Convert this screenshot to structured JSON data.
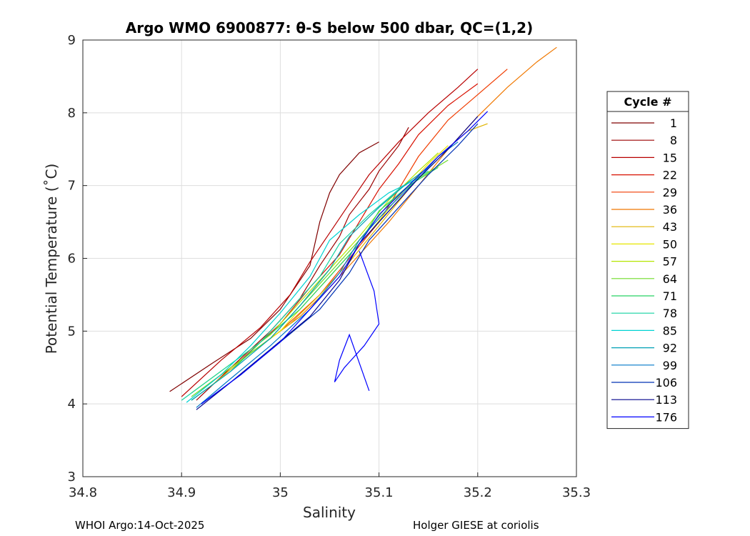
{
  "chart_data": {
    "type": "line",
    "title": "Argo WMO 6900877: θ-S below 500 dbar,  QC=(1,2)",
    "xlabel": "Salinity",
    "ylabel": "Potential Temperature (˚C)",
    "xlim": [
      34.8,
      35.3
    ],
    "ylim": [
      3,
      9
    ],
    "xticks": [
      "34.8",
      "34.9",
      "35",
      "35.1",
      "35.2",
      "35.3"
    ],
    "yticks": [
      "3",
      "4",
      "5",
      "6",
      "7",
      "8",
      "9"
    ],
    "grid": true,
    "legend_title": "Cycle #",
    "legend_placement": "right-outside",
    "series": [
      {
        "name": "1",
        "color": "#800000",
        "x": [
          34.888,
          34.93,
          34.97,
          35.0,
          35.03,
          35.04,
          35.05,
          35.06,
          35.08,
          35.1
        ],
        "y": [
          4.17,
          4.55,
          4.9,
          5.3,
          5.9,
          6.5,
          6.9,
          7.15,
          7.45,
          7.6
        ]
      },
      {
        "name": "8",
        "color": "#9b0000",
        "x": [
          34.915,
          34.95,
          34.99,
          35.02,
          35.04,
          35.06,
          35.07,
          35.09,
          35.1,
          35.12,
          35.13
        ],
        "y": [
          4.05,
          4.5,
          5.0,
          5.45,
          5.9,
          6.3,
          6.6,
          6.95,
          7.2,
          7.55,
          7.8
        ]
      },
      {
        "name": "15",
        "color": "#b80000",
        "x": [
          34.9,
          34.94,
          34.98,
          35.01,
          35.03,
          35.05,
          35.07,
          35.09,
          35.12,
          35.15,
          35.18,
          35.2
        ],
        "y": [
          4.1,
          4.6,
          5.05,
          5.5,
          5.95,
          6.35,
          6.75,
          7.15,
          7.6,
          8.0,
          8.35,
          8.6
        ]
      },
      {
        "name": "22",
        "color": "#d81000",
        "x": [
          34.92,
          34.96,
          35.0,
          35.03,
          35.06,
          35.08,
          35.1,
          35.12,
          35.14,
          35.17,
          35.2
        ],
        "y": [
          4.2,
          4.6,
          5.1,
          5.6,
          6.05,
          6.5,
          6.95,
          7.3,
          7.7,
          8.1,
          8.4
        ]
      },
      {
        "name": "29",
        "color": "#f03c00",
        "x": [
          34.93,
          34.97,
          35.0,
          35.04,
          35.07,
          35.1,
          35.12,
          35.14,
          35.17,
          35.2,
          35.23
        ],
        "y": [
          4.3,
          4.7,
          5.0,
          5.5,
          6.0,
          6.5,
          6.95,
          7.4,
          7.9,
          8.25,
          8.6
        ]
      },
      {
        "name": "36",
        "color": "#f07800",
        "x": [
          34.94,
          34.98,
          35.02,
          35.05,
          35.08,
          35.11,
          35.14,
          35.17,
          35.2,
          35.23,
          35.26,
          35.28
        ],
        "y": [
          4.4,
          4.8,
          5.2,
          5.6,
          6.05,
          6.5,
          7.0,
          7.5,
          7.95,
          8.35,
          8.7,
          8.9
        ]
      },
      {
        "name": "43",
        "color": "#e0b400",
        "x": [
          34.93,
          34.97,
          35.01,
          35.04,
          35.07,
          35.1,
          35.13,
          35.16,
          35.19,
          35.21
        ],
        "y": [
          4.25,
          4.7,
          5.1,
          5.5,
          5.95,
          6.45,
          6.95,
          7.4,
          7.75,
          7.85
        ]
      },
      {
        "name": "50",
        "color": "#e6e600",
        "x": [
          34.92,
          34.96,
          35.0,
          35.03,
          35.06,
          35.09,
          35.12,
          35.15,
          35.17
        ],
        "y": [
          4.2,
          4.6,
          5.0,
          5.45,
          5.9,
          6.35,
          6.85,
          7.3,
          7.55
        ]
      },
      {
        "name": "57",
        "color": "#b4e600",
        "x": [
          34.91,
          34.95,
          34.99,
          35.02,
          35.05,
          35.08,
          35.11,
          35.14,
          35.16
        ],
        "y": [
          4.15,
          4.55,
          4.95,
          5.4,
          5.85,
          6.3,
          6.8,
          7.2,
          7.45
        ]
      },
      {
        "name": "64",
        "color": "#6edc28",
        "x": [
          34.91,
          34.95,
          34.99,
          35.02,
          35.05,
          35.08,
          35.11,
          35.14,
          35.17
        ],
        "y": [
          4.1,
          4.5,
          4.9,
          5.35,
          5.8,
          6.25,
          6.75,
          7.1,
          7.35
        ]
      },
      {
        "name": "71",
        "color": "#28d264",
        "x": [
          34.91,
          34.95,
          34.98,
          35.02,
          35.05,
          35.08,
          35.1,
          35.13,
          35.16
        ],
        "y": [
          4.05,
          4.45,
          4.85,
          5.3,
          5.75,
          6.2,
          6.65,
          7.0,
          7.25
        ]
      },
      {
        "name": "78",
        "color": "#14d2a0",
        "x": [
          34.9,
          34.94,
          34.98,
          35.01,
          35.04,
          35.06,
          35.09,
          35.12,
          35.15
        ],
        "y": [
          4.05,
          4.45,
          4.85,
          5.3,
          5.75,
          6.2,
          6.6,
          6.95,
          7.2
        ]
      },
      {
        "name": "85",
        "color": "#00d2d2",
        "x": [
          34.905,
          34.94,
          34.97,
          35.0,
          35.03,
          35.05,
          35.08,
          35.11,
          35.14
        ],
        "y": [
          4.02,
          4.4,
          4.8,
          5.25,
          5.75,
          6.25,
          6.6,
          6.9,
          7.1
        ]
      },
      {
        "name": "92",
        "color": "#00a0b4",
        "x": [
          34.91,
          34.95,
          34.99,
          35.02,
          35.05,
          35.07,
          35.1,
          35.13,
          35.15
        ],
        "y": [
          4.05,
          4.45,
          4.9,
          5.35,
          5.85,
          6.3,
          6.7,
          7.05,
          7.25
        ]
      },
      {
        "name": "99",
        "color": "#0078c8",
        "x": [
          34.915,
          34.95,
          34.99,
          35.03,
          35.06,
          35.08,
          35.11,
          35.14,
          35.16,
          35.18
        ],
        "y": [
          3.95,
          4.35,
          4.8,
          5.3,
          5.8,
          6.25,
          6.7,
          7.1,
          7.4,
          7.6
        ]
      },
      {
        "name": "106",
        "color": "#0032b4",
        "x": [
          34.92,
          34.96,
          35.0,
          35.04,
          35.07,
          35.09,
          35.12,
          35.15,
          35.18,
          35.2
        ],
        "y": [
          4.0,
          4.4,
          4.85,
          5.3,
          5.8,
          6.25,
          6.7,
          7.15,
          7.55,
          7.85
        ]
      },
      {
        "name": "113",
        "color": "#00008c",
        "x": [
          34.915,
          34.95,
          34.99,
          35.03,
          35.06,
          35.08,
          35.11,
          35.14,
          35.17,
          35.2
        ],
        "y": [
          3.92,
          4.3,
          4.75,
          5.2,
          5.7,
          6.2,
          6.65,
          7.1,
          7.5,
          7.95
        ]
      },
      {
        "name": "176",
        "color": "#0000ff",
        "x": [
          34.92,
          34.96,
          35.0,
          35.03,
          35.06,
          35.08,
          35.1,
          35.13,
          35.16,
          35.19,
          35.21
        ],
        "y": [
          4.0,
          4.4,
          4.85,
          5.3,
          5.75,
          6.2,
          6.6,
          7.0,
          7.4,
          7.75,
          8.02
        ]
      }
    ],
    "annotations_lower_tail": [
      {
        "series": "176",
        "x": [
          35.08,
          35.095,
          35.1,
          35.085,
          35.065,
          35.055,
          35.06,
          35.07,
          35.09
        ],
        "y": [
          6.1,
          5.55,
          5.1,
          4.8,
          4.5,
          4.3,
          4.6,
          4.95,
          4.18
        ]
      }
    ]
  },
  "footer": {
    "left": "WHOI Argo:14-Oct-2025",
    "right": "Holger GIESE at coriolis"
  }
}
